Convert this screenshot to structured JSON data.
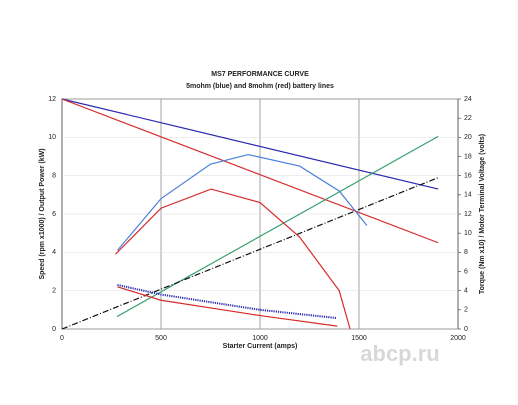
{
  "chart_data": {
    "type": "line",
    "title": "MS7 PERFORMANCE CURVE",
    "subtitle": "5mohm (blue) and 8mohm (red) battery lines",
    "x_label": "Starter Current (amps)",
    "y_label": "Speed (rpm x1000) / Output Power (kW)",
    "y2_label": "Torque (Nm x10) / Motor Terminal Voltage (volts)",
    "xlim": [
      0,
      2000
    ],
    "xticks": [
      0,
      500,
      1000,
      1500,
      2000
    ],
    "ylim": [
      0,
      12
    ],
    "yticks": [
      0,
      2,
      4,
      6,
      8,
      10,
      12
    ],
    "y2lim": [
      0,
      24
    ],
    "y2ticks": [
      0,
      2,
      4,
      6,
      8,
      10,
      12,
      14,
      16,
      18,
      20,
      22,
      24
    ],
    "grid": true,
    "series": [
      {
        "color": "#2a2ab0",
        "axis": "y2",
        "x": [
          0,
          1900
        ],
        "values": [
          24,
          14.6
        ]
      },
      {
        "color": "#d62a2a",
        "axis": "y2",
        "x": [
          0,
          1900
        ],
        "values": [
          24,
          9.0
        ]
      },
      {
        "color": "#3aa070",
        "axis": "y2",
        "x": [
          278,
          1900
        ],
        "values": [
          1.3,
          20.1
        ]
      },
      {
        "color": "#111111",
        "axis": "y2",
        "dash": "dashdot",
        "x": [
          0,
          1900
        ],
        "values": [
          0,
          15.8
        ]
      },
      {
        "color": "#4a7fd8",
        "x": [
          280,
          500,
          750,
          940,
          1200,
          1400,
          1540
        ],
        "values": [
          4.1,
          6.8,
          8.6,
          9.1,
          8.5,
          7.2,
          5.4
        ]
      },
      {
        "color": "#d62a2a",
        "x": [
          270,
          500,
          753,
          1000,
          1200,
          1400,
          1455
        ],
        "values": [
          3.9,
          6.3,
          7.3,
          6.6,
          4.8,
          2.0,
          0
        ]
      },
      {
        "color": "#2a2ab0",
        "dash": "dotted",
        "x": [
          280,
          500,
          1000,
          1389
        ],
        "values": [
          2.3,
          1.8,
          1.0,
          0.57
        ]
      },
      {
        "color": "#d62a2a",
        "x": [
          280,
          500,
          1000,
          1390
        ],
        "values": [
          2.2,
          1.5,
          0.7,
          0.15
        ]
      }
    ]
  },
  "watermark": "abcp.ru"
}
